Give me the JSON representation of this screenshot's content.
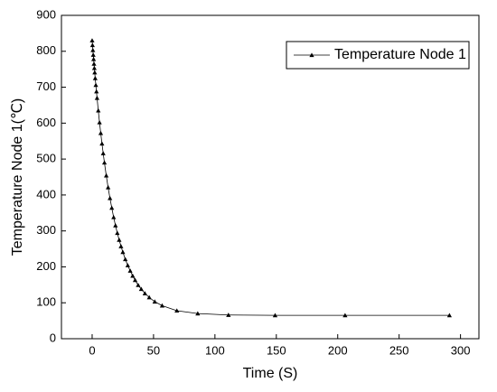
{
  "chart_data": {
    "type": "line",
    "x_label": "Time (S)",
    "y_label": "Temperature  Node 1(℃)",
    "x": [
      0,
      0.3,
      0.6,
      0.9,
      1.2,
      1.5,
      1.8,
      2.1,
      2.5,
      3,
      3.5,
      4,
      5,
      6,
      7,
      8,
      9,
      10,
      11.5,
      13,
      14.5,
      16,
      17.5,
      19,
      20.5,
      22,
      23.5,
      25,
      27,
      29,
      31,
      33,
      35,
      37.5,
      40,
      43,
      46.5,
      51,
      57,
      69,
      86,
      111,
      149,
      206,
      291
    ],
    "series": [
      {
        "name": "Temperature  Node 1",
        "color": "#000000",
        "values": [
          830,
          817,
          803,
          790,
          778,
          765,
          753,
          741,
          725,
          706,
          688,
          670,
          635,
          602,
          572,
          543,
          516,
          490,
          454,
          421,
          391,
          364,
          338,
          315,
          294,
          275,
          257,
          241,
          221,
          204,
          189,
          175,
          163,
          149,
          138,
          126,
          115,
          103,
          92,
          78,
          70,
          66,
          65,
          65,
          65
        ]
      }
    ],
    "xlim": [
      -25,
      315
    ],
    "xticks": [
      0,
      50,
      100,
      150,
      200,
      250,
      300
    ],
    "ylim": [
      0,
      900
    ],
    "yticks": [
      0,
      100,
      200,
      300,
      400,
      500,
      600,
      700,
      800,
      900
    ],
    "legend": "upper right",
    "grid": false
  }
}
